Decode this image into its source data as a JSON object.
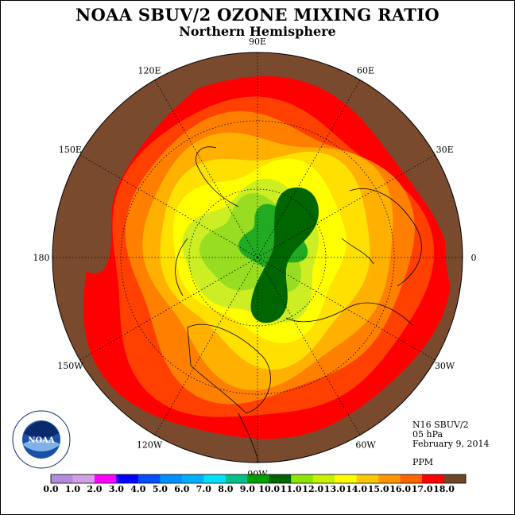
{
  "header": {
    "title": "NOAA SBUV/2 OZONE MIXING RATIO",
    "subtitle": "Northern Hemisphere"
  },
  "map": {
    "longitude_labels": [
      "90E",
      "60E",
      "30E",
      "0",
      "30W",
      "60W",
      "90W",
      "120W",
      "150W",
      "180",
      "150E",
      "120E"
    ],
    "contour_levels_ppm": [
      18.0,
      17.0,
      16.0,
      15.0,
      14.0,
      13.0,
      12.0,
      11.0,
      10.0,
      9.0
    ],
    "contour_colors": [
      "#7a4a2e",
      "#ff0000",
      "#ff4000",
      "#ff8000",
      "#ffb000",
      "#ffe000",
      "#ffff00",
      "#ccee22",
      "#99dd22",
      "#22aa22",
      "#006600"
    ]
  },
  "info": {
    "instrument": "N16 SBUV/2",
    "level": "05 hPa",
    "date": "February 9, 2014",
    "units": "PPM"
  },
  "colorbar": {
    "ticks": [
      "0.0",
      "1.0",
      "2.0",
      "3.0",
      "4.0",
      "5.0",
      "6.0",
      "7.0",
      "8.0",
      "9.0",
      "10.0",
      "11.0",
      "12.0",
      "13.0",
      "14.0",
      "15.0",
      "16.0",
      "17.0",
      "18.0"
    ],
    "colors": [
      "#b48cdc",
      "#d2a0e6",
      "#ff00ff",
      "#0000ff",
      "#0050ff",
      "#0090ff",
      "#00b0ff",
      "#00e0ff",
      "#00c08c",
      "#00a000",
      "#006400",
      "#8ce600",
      "#c8f000",
      "#ffff00",
      "#ffc800",
      "#ff9600",
      "#ff6400",
      "#ff0000",
      "#6e4628"
    ]
  },
  "logo": {
    "name": "NOAA",
    "ring_text": "NATIONAL OCEANIC AND ATMOSPHERIC ADMINISTRATION · U.S. DEPARTMENT OF COMMERCE"
  }
}
